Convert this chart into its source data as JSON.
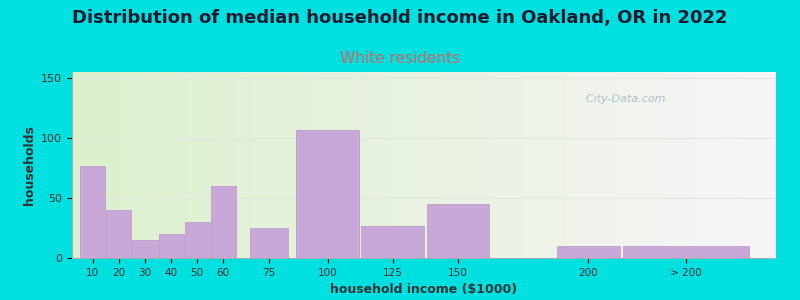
{
  "title": "Distribution of median household income in Oakland, OR in 2022",
  "subtitle": "White residents",
  "xlabel": "household income ($1000)",
  "ylabel": "households",
  "title_fontsize": 13,
  "subtitle_fontsize": 11,
  "subtitle_color": "#cc6666",
  "bar_color": "#c8a8d8",
  "bar_edge_color": "#b898c8",
  "background_outer": "#00e0e0",
  "ylim": [
    0,
    155
  ],
  "yticks": [
    0,
    50,
    100,
    150
  ],
  "categories": [
    "10",
    "20",
    "30",
    "40",
    "50",
    "60",
    "75",
    "100",
    "125",
    "150",
    "200",
    "> 200"
  ],
  "values": [
    77,
    40,
    15,
    20,
    30,
    60,
    25,
    107,
    27,
    45,
    10,
    10
  ],
  "bar_lefts": [
    5,
    15,
    25,
    35,
    45,
    55,
    70,
    87.5,
    112.5,
    137.5,
    187.5,
    212.5
  ],
  "bar_widths": [
    10,
    10,
    10,
    10,
    10,
    10,
    15,
    25,
    25,
    25,
    25,
    50
  ],
  "x_min": 2,
  "x_max": 272,
  "watermark": "  City-Data.com",
  "watermark_color": "#a0b8c8",
  "grid_color": "#e0e8e0"
}
